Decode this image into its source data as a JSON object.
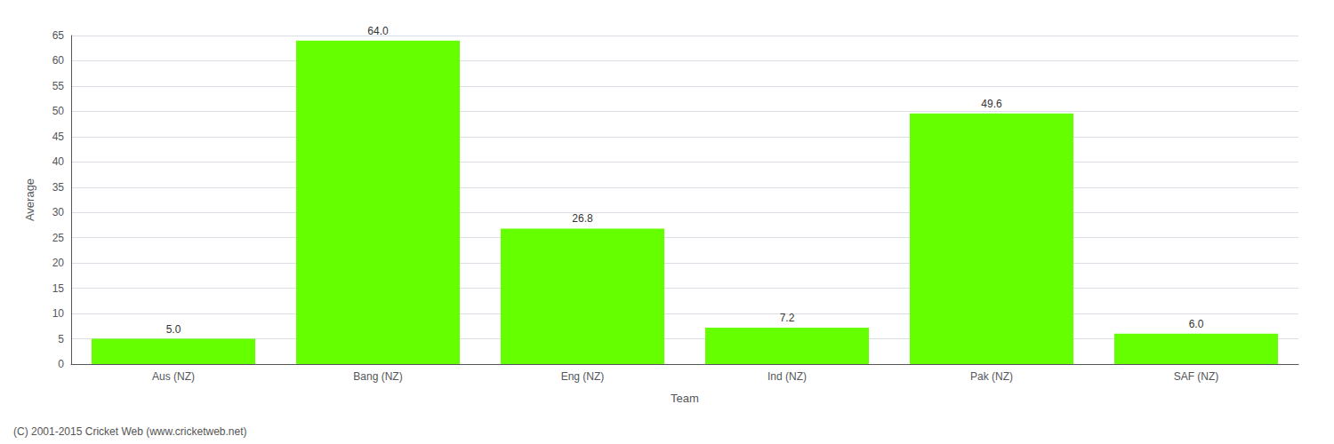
{
  "chart_data": {
    "type": "bar",
    "categories": [
      "Aus (NZ)",
      "Bang (NZ)",
      "Eng (NZ)",
      "Ind (NZ)",
      "Pak (NZ)",
      "SAF (NZ)"
    ],
    "values": [
      5.0,
      64.0,
      26.8,
      7.2,
      49.6,
      6.0
    ],
    "value_labels": [
      "5.0",
      "64.0",
      "26.8",
      "7.2",
      "49.6",
      "6.0"
    ],
    "data_labels": true,
    "color": "#66ff00",
    "xlabel": "Team",
    "ylabel": "Average",
    "ylim": [
      0,
      65
    ],
    "yticks": [
      0,
      5,
      10,
      15,
      20,
      25,
      30,
      35,
      40,
      45,
      50,
      55,
      60,
      65
    ],
    "grid": true,
    "annotations": [
      "(C) 2001-2015 Cricket Web (www.cricketweb.net)"
    ]
  }
}
